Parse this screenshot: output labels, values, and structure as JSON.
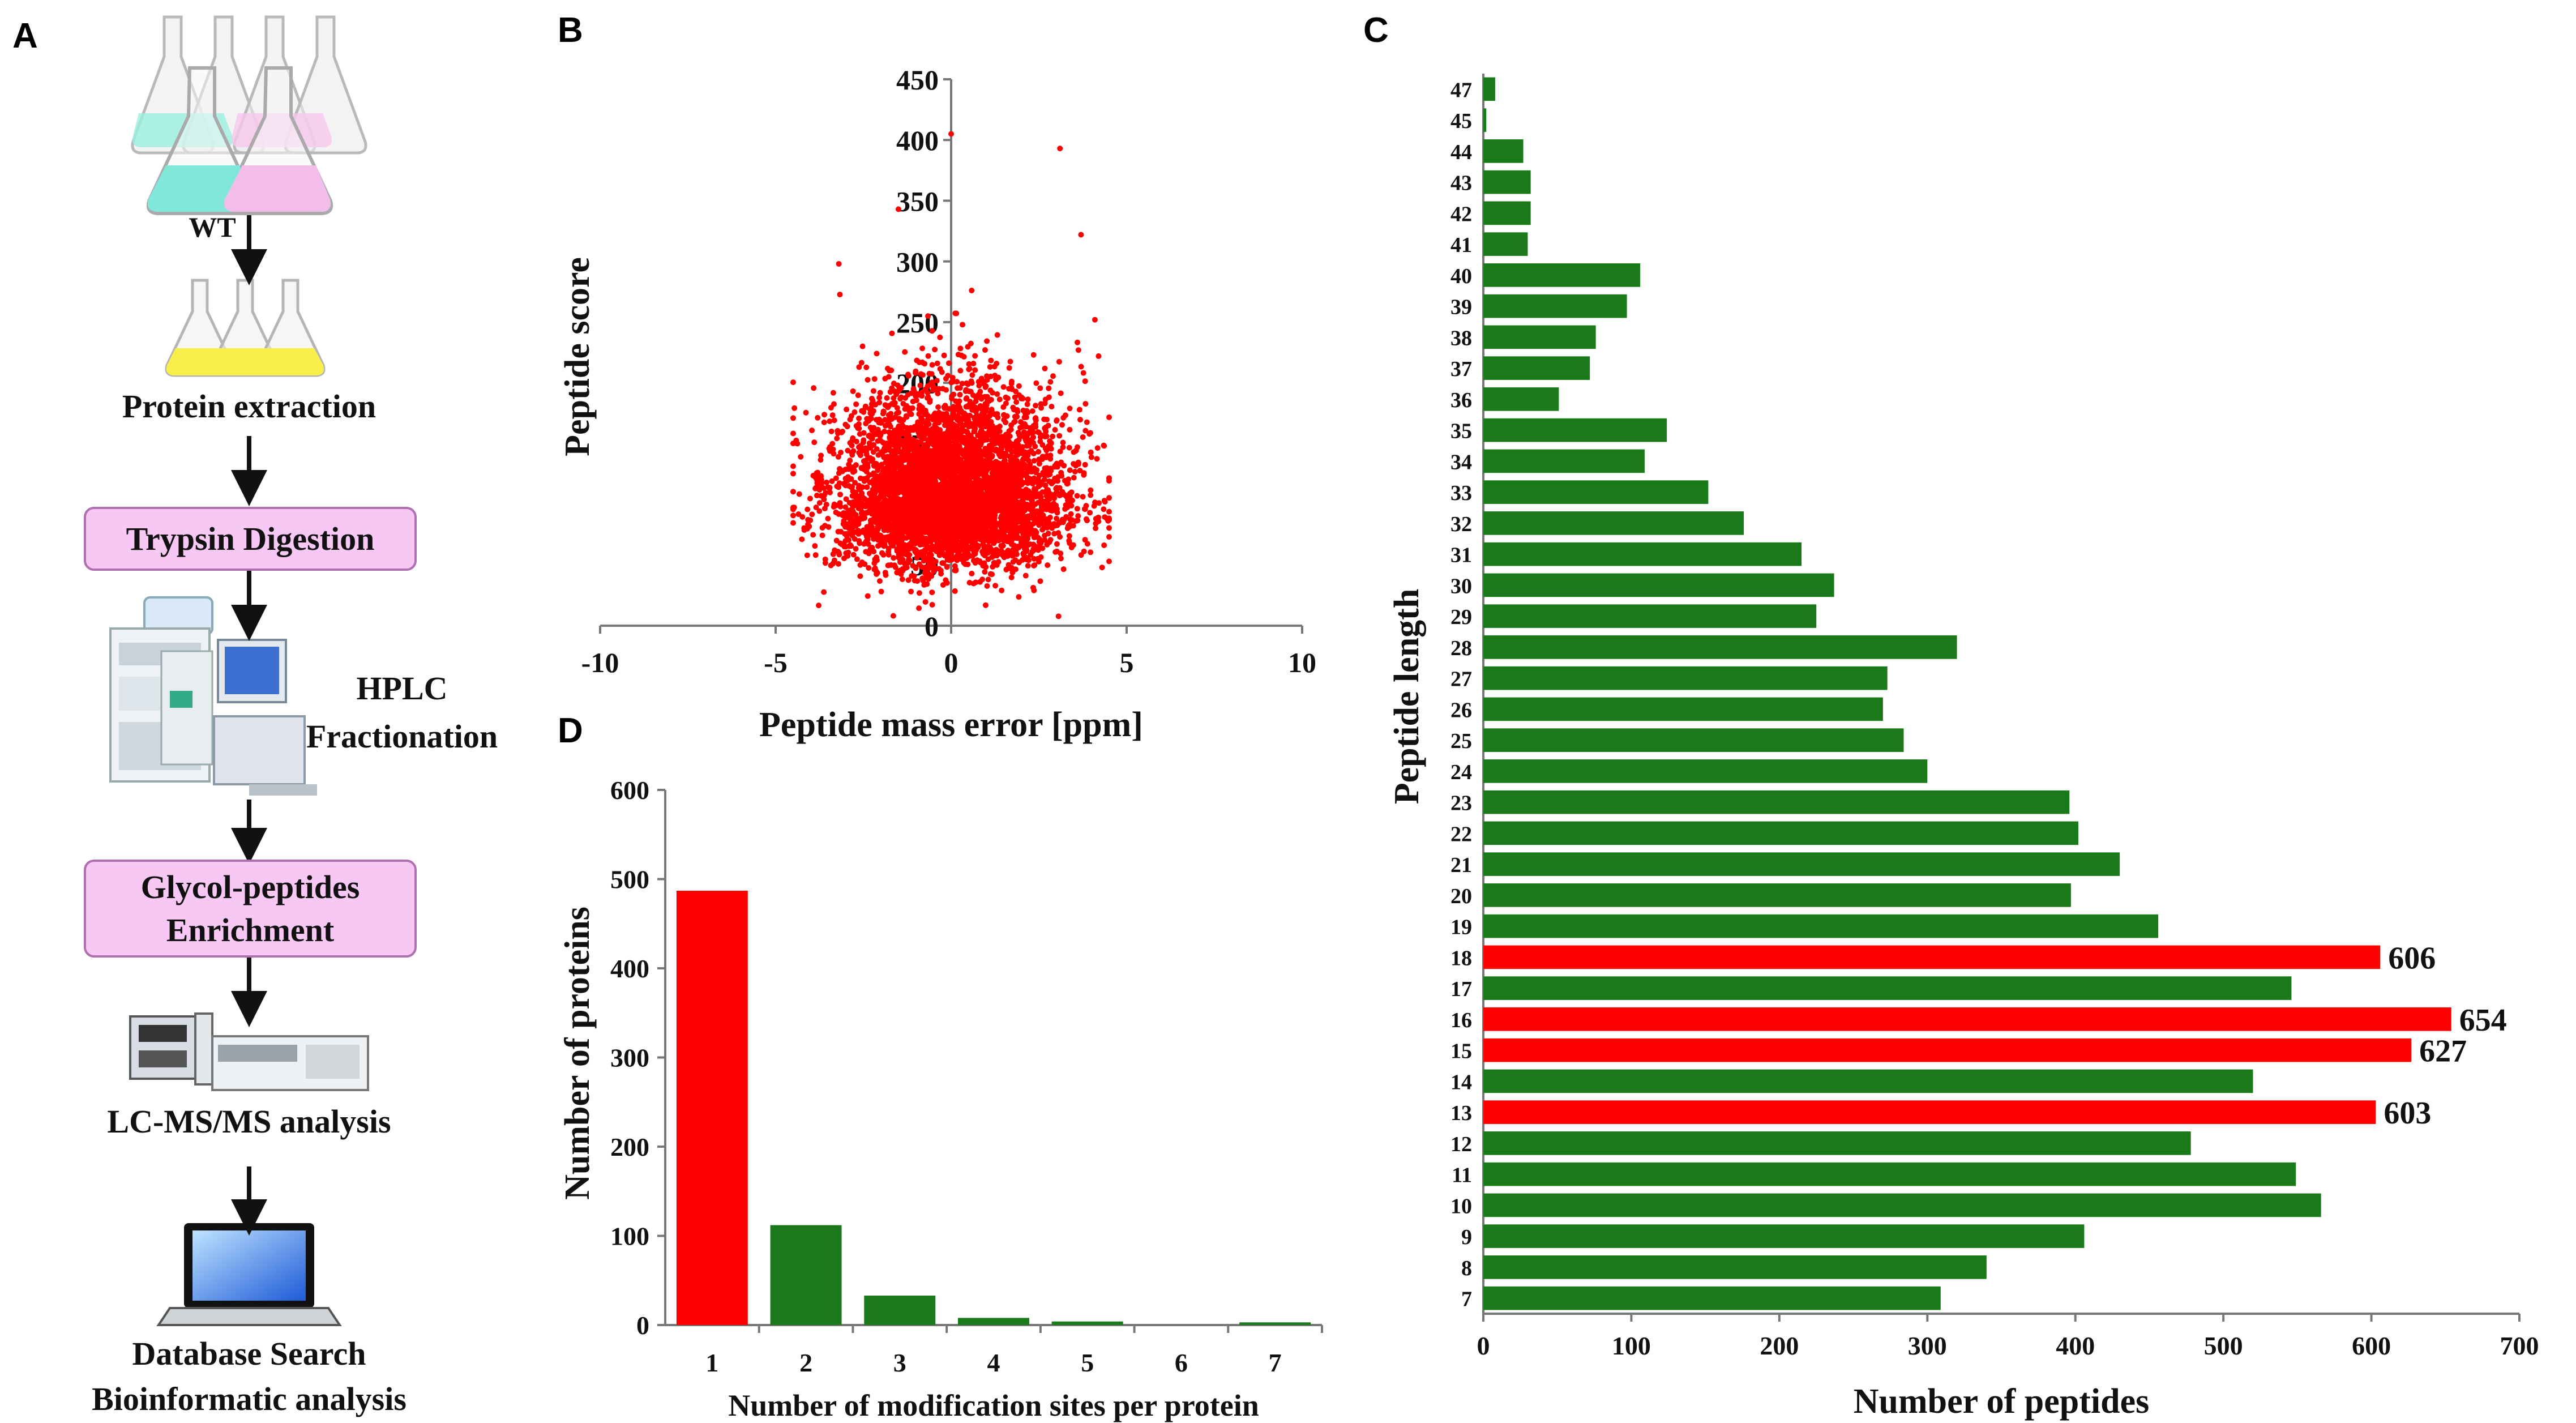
{
  "panels": {
    "a": "A",
    "b": "B",
    "c": "C",
    "d": "D"
  },
  "workflow": {
    "wt_label": "WT",
    "extraction": "Protein extraction",
    "digestion": "Trypsin Digestion",
    "hplc_line1": "HPLC",
    "hplc_line2": "Fractionation",
    "enrich_line1": "Glycol-peptides",
    "enrich_line2": "Enrichment",
    "lcms": "LC-MS/MS analysis",
    "search_line1": "Database Search",
    "search_line2": "Bioinformatic analysis"
  },
  "chart_data": [
    {
      "id": "B",
      "type": "scatter",
      "title": "",
      "xlabel": "Peptide mass error [ppm]",
      "ylabel": "Peptide score",
      "xlim": [
        -10,
        10
      ],
      "ylim": [
        0,
        450
      ],
      "xticks": [
        "-10",
        "-5",
        "0",
        "5",
        "10"
      ],
      "yticks": [
        "0",
        "50",
        "100",
        "150",
        "200",
        "250",
        "300",
        "350",
        "400",
        "450"
      ],
      "series": [
        {
          "name": "peptides",
          "color": "#ff0000",
          "n_points": 5200,
          "x_center": 0,
          "x_sd": 1.6,
          "y_center": 90,
          "y_sd": 45,
          "outliers": [
            [
              0,
              405
            ],
            [
              3.1,
              393
            ],
            [
              3.7,
              322
            ],
            [
              -1.5,
              343
            ],
            [
              -3.2,
              298
            ],
            [
              4.2,
              222
            ],
            [
              -4.1,
              58
            ],
            [
              4.3,
              48
            ]
          ]
        }
      ]
    },
    {
      "id": "C",
      "type": "bar",
      "orientation": "horizontal",
      "xlabel": "Number of peptides",
      "ylabel": "Peptide length",
      "xlim": [
        0,
        700
      ],
      "xticks": [
        "0",
        "100",
        "200",
        "300",
        "400",
        "500",
        "600",
        "700"
      ],
      "categories": [
        "7",
        "8",
        "9",
        "10",
        "11",
        "12",
        "13",
        "14",
        "15",
        "16",
        "17",
        "18",
        "19",
        "20",
        "21",
        "22",
        "23",
        "24",
        "25",
        "26",
        "27",
        "28",
        "29",
        "30",
        "31",
        "32",
        "33",
        "34",
        "35",
        "36",
        "37",
        "38",
        "39",
        "40",
        "41",
        "42",
        "43",
        "44",
        "45",
        "47"
      ],
      "values": [
        309,
        340,
        406,
        566,
        549,
        478,
        603,
        520,
        627,
        654,
        546,
        606,
        456,
        397,
        430,
        402,
        396,
        300,
        284,
        270,
        273,
        320,
        225,
        237,
        215,
        176,
        152,
        109,
        124,
        51,
        72,
        76,
        97,
        106,
        30,
        32,
        32,
        27,
        2,
        8
      ],
      "highlight": [
        "13",
        "15",
        "16",
        "18"
      ],
      "highlight_color": "#ff0000",
      "base_color": "#1a7a1a",
      "data_labels": {
        "13": "603",
        "15": "627",
        "16": "654",
        "18": "606"
      }
    },
    {
      "id": "D",
      "type": "bar",
      "xlabel": "Number of modification sites per protein",
      "ylabel": "Number of proteins",
      "ylim": [
        0,
        600
      ],
      "yticks": [
        "0",
        "100",
        "200",
        "300",
        "400",
        "500",
        "600"
      ],
      "categories": [
        "1",
        "2",
        "3",
        "4",
        "5",
        "6",
        "7"
      ],
      "values": [
        487,
        112,
        33,
        8,
        4,
        0,
        3
      ],
      "colors": [
        "#ff0000",
        "#1a7a1a",
        "#1a7a1a",
        "#1a7a1a",
        "#1a7a1a",
        "#1a7a1a",
        "#1a7a1a"
      ]
    }
  ]
}
